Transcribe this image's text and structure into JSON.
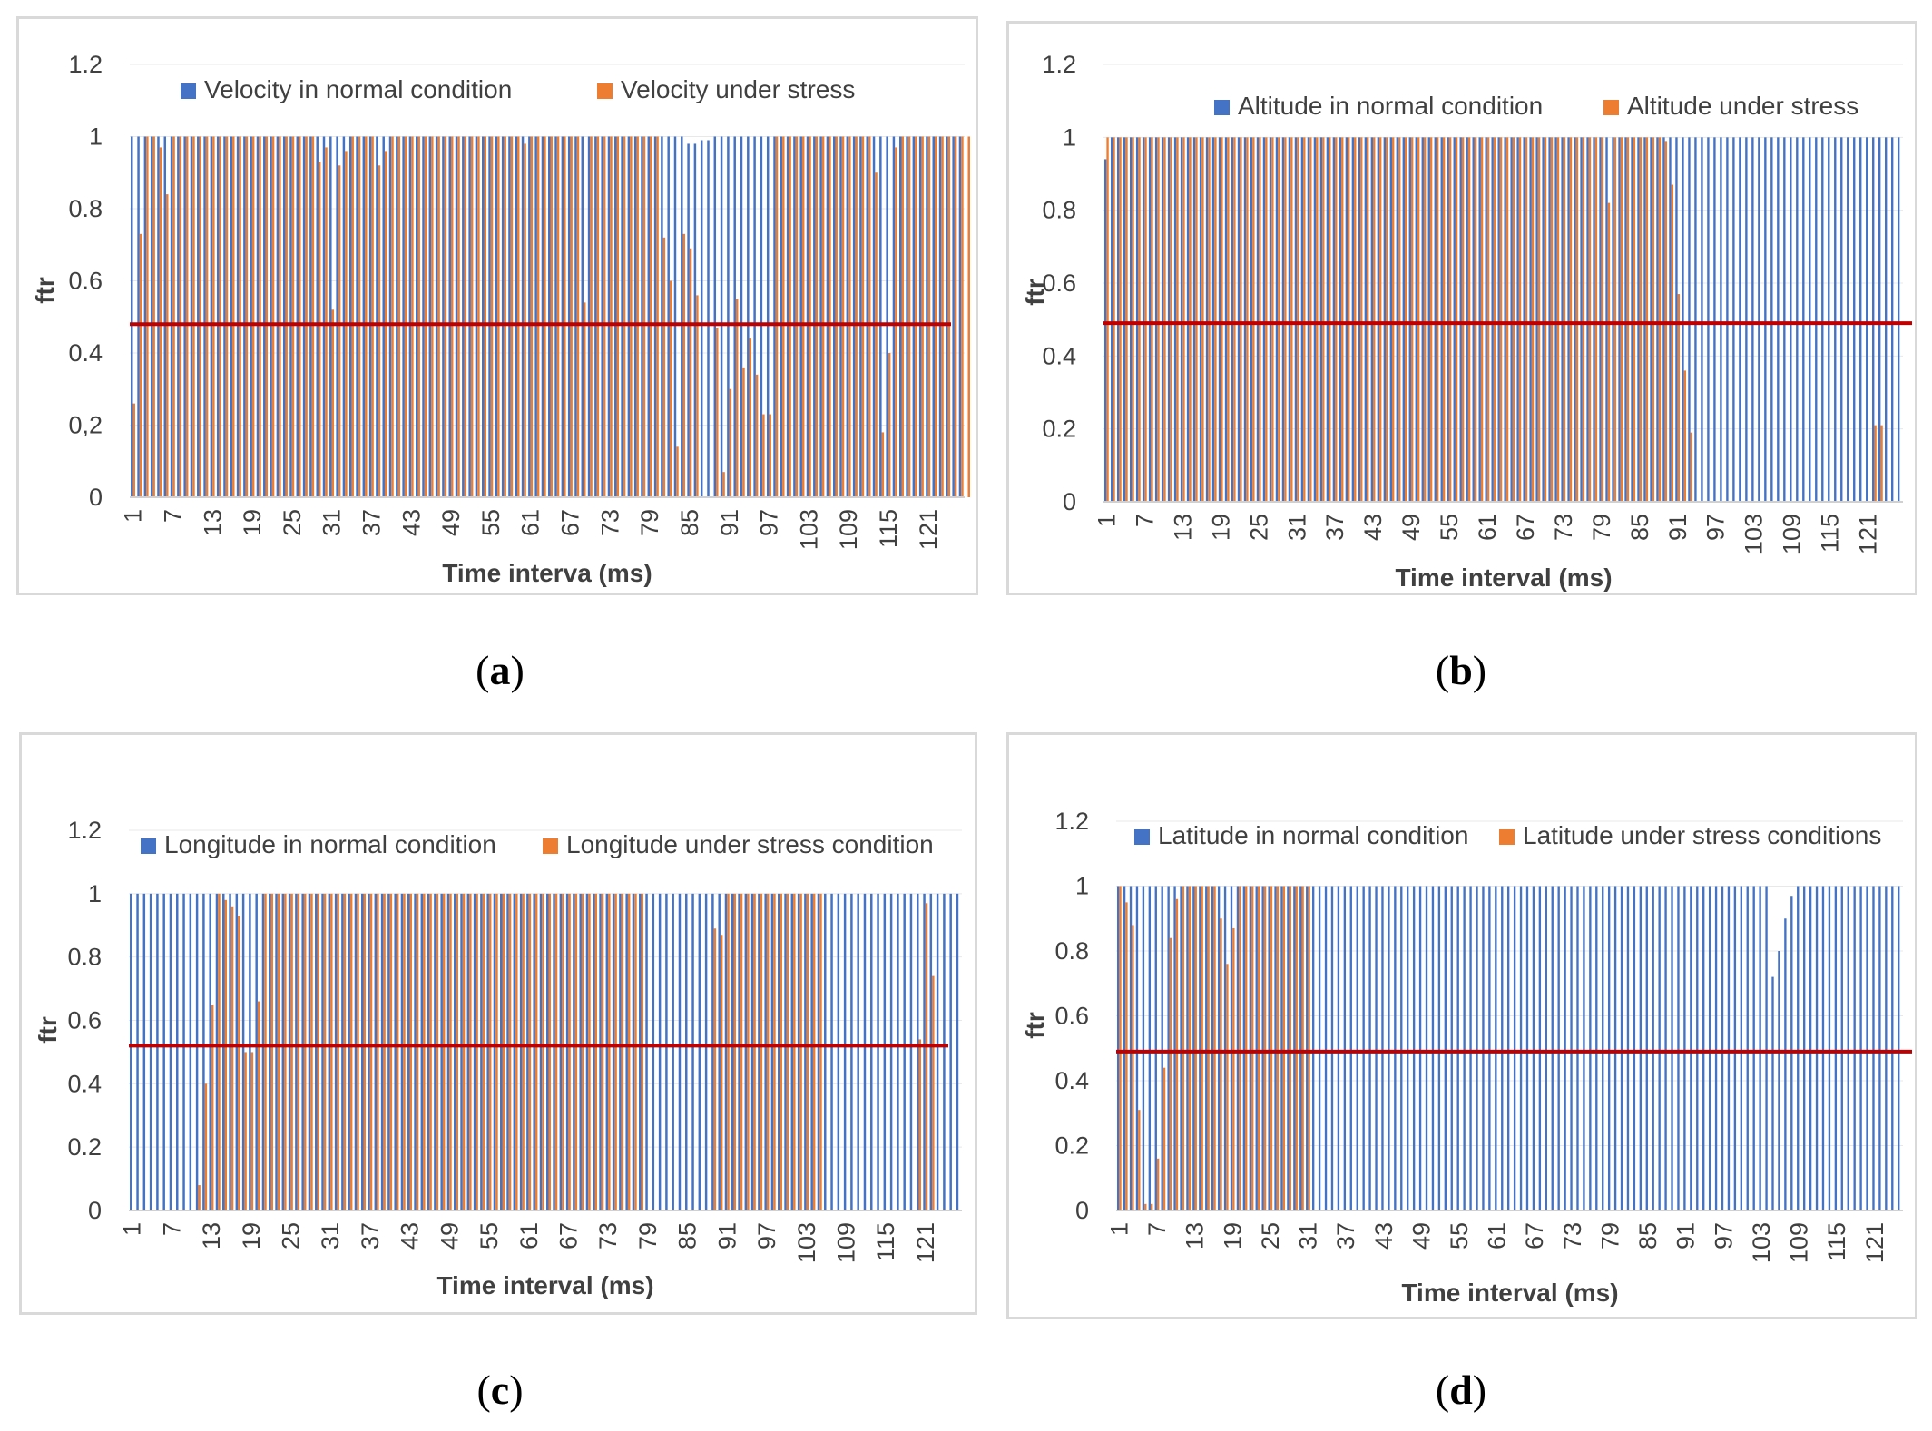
{
  "colors": {
    "normal": "#4472c4",
    "stress": "#ed7d31",
    "threshold": "#c00000"
  },
  "captions": [
    "a",
    "b",
    "c",
    "d"
  ],
  "chart_data": [
    {
      "type": "bar",
      "id": "a",
      "ylabel": "ftr",
      "xlabel": "Time interva (ms)",
      "y_tick_labels": [
        "0",
        "0,2",
        "0.4",
        "0.6",
        "0.8",
        "1",
        "1.2"
      ],
      "ylim": [
        0,
        1.2
      ],
      "x_tick_labels": [
        "1",
        "7",
        "13",
        "19",
        "25",
        "31",
        "37",
        "43",
        "49",
        "55",
        "61",
        "67",
        "73",
        "79",
        "85",
        "91",
        "97",
        "103",
        "109",
        "115",
        "121"
      ],
      "threshold": 0.48,
      "legend": [
        "Velocity in normal condition",
        "Velocity under stress"
      ],
      "series": [
        {
          "name": "Velocity in normal condition",
          "values": [
            1,
            1,
            1,
            1,
            1,
            1,
            1,
            1,
            1,
            1,
            1,
            1,
            1,
            1,
            1,
            1,
            1,
            1,
            1,
            1,
            1,
            1,
            1,
            1,
            1,
            1,
            1,
            1,
            1,
            1,
            1,
            1,
            1,
            1,
            1,
            1,
            1,
            1,
            1,
            1,
            1,
            1,
            1,
            1,
            1,
            1,
            1,
            1,
            1,
            1,
            1,
            1,
            1,
            1,
            1,
            1,
            1,
            1,
            1,
            1,
            1,
            1,
            1,
            1,
            1,
            1,
            1,
            1,
            1,
            1,
            1,
            1,
            1,
            1,
            1,
            1,
            1,
            1,
            1,
            1,
            1,
            1,
            1,
            1,
            0.98,
            0.98,
            0.99,
            0.99,
            1,
            1,
            1,
            1,
            1,
            1,
            1,
            1,
            1,
            1,
            1,
            1,
            1,
            1,
            1,
            1,
            1,
            1,
            1,
            1,
            1,
            1,
            1,
            1,
            1,
            1,
            1,
            1,
            1,
            1,
            1,
            1,
            1,
            1,
            1,
            1,
            1,
            1
          ]
        },
        {
          "name": "Velocity under stress",
          "values": [
            0.26,
            0.73,
            1,
            1,
            0.97,
            0.84,
            1,
            1,
            1,
            1,
            1,
            1,
            1,
            1,
            1,
            1,
            1,
            1,
            1,
            1,
            1,
            1,
            1,
            1,
            1,
            1,
            1,
            1,
            0.93,
            0.97,
            0.52,
            0.92,
            0.96,
            1,
            1,
            1,
            1,
            0.92,
            0.96,
            1,
            1,
            1,
            1,
            1,
            1,
            1,
            1,
            1,
            1,
            1,
            1,
            1,
            1,
            1,
            1,
            1,
            1,
            1,
            1,
            0.98,
            1,
            1,
            1,
            1,
            1,
            1,
            1,
            1,
            0.54,
            1,
            1,
            1,
            1,
            1,
            1,
            1,
            1,
            1,
            1,
            1,
            0.72,
            0.6,
            0.14,
            0.73,
            0.69,
            0.56,
            0,
            0,
            0.47,
            0.07,
            0.3,
            0.55,
            0.36,
            0.44,
            0.34,
            0.23,
            0.23,
            1,
            1,
            1,
            1,
            1,
            1,
            1,
            1,
            1,
            1,
            1,
            1,
            1,
            1,
            1,
            0.9,
            0.18,
            0.4,
            0.97,
            1,
            1,
            1,
            1,
            1,
            1,
            1,
            1,
            1,
            1,
            1
          ]
        }
      ]
    },
    {
      "type": "bar",
      "id": "b",
      "ylabel": "ftr",
      "xlabel": "Time interval (ms)",
      "y_tick_labels": [
        "0",
        "0.2",
        "0.4",
        "0.6",
        "0.8",
        "1",
        "1.2"
      ],
      "ylim": [
        0,
        1.2
      ],
      "x_tick_labels": [
        "1",
        "7",
        "13",
        "19",
        "25",
        "31",
        "37",
        "43",
        "49",
        "55",
        "61",
        "67",
        "73",
        "79",
        "85",
        "91",
        "97",
        "103",
        "109",
        "115",
        "121"
      ],
      "threshold": 0.49,
      "legend": [
        "Altitude in normal condition",
        "Altitude under stress"
      ],
      "series": [
        {
          "name": "Altitude in normal condition",
          "values": [
            0.94,
            1,
            1,
            1,
            1,
            1,
            1,
            1,
            1,
            1,
            1,
            1,
            1,
            1,
            1,
            1,
            1,
            1,
            1,
            1,
            1,
            1,
            1,
            1,
            1,
            1,
            1,
            1,
            1,
            1,
            1,
            1,
            1,
            1,
            1,
            1,
            1,
            1,
            1,
            1,
            1,
            1,
            1,
            1,
            1,
            1,
            1,
            1,
            1,
            1,
            1,
            1,
            1,
            1,
            1,
            1,
            1,
            1,
            1,
            1,
            1,
            1,
            1,
            1,
            1,
            1,
            1,
            1,
            1,
            1,
            1,
            1,
            1,
            1,
            1,
            1,
            1,
            1,
            1,
            1,
            1,
            1,
            1,
            1,
            1,
            1,
            1,
            1,
            1,
            1,
            1,
            1,
            1,
            1,
            1,
            1,
            1,
            1,
            1,
            1,
            1,
            1,
            1,
            1,
            1,
            1,
            1,
            1,
            1,
            1,
            1,
            1,
            1,
            1,
            1,
            1,
            1,
            1,
            1,
            1,
            1,
            1,
            1,
            1,
            1,
            1
          ]
        },
        {
          "name": "Altitude under stress",
          "values": [
            1,
            1,
            1,
            1,
            1,
            1,
            1,
            1,
            1,
            1,
            1,
            1,
            1,
            1,
            1,
            1,
            1,
            1,
            1,
            1,
            1,
            1,
            1,
            1,
            1,
            1,
            1,
            1,
            1,
            1,
            1,
            1,
            1,
            1,
            1,
            1,
            1,
            1,
            1,
            1,
            1,
            1,
            1,
            1,
            1,
            1,
            1,
            1,
            1,
            1,
            1,
            1,
            1,
            1,
            1,
            1,
            1,
            1,
            1,
            1,
            1,
            1,
            1,
            1,
            1,
            1,
            1,
            1,
            1,
            1,
            1,
            1,
            1,
            1,
            1,
            1,
            1,
            1,
            1,
            0.82,
            1,
            1,
            1,
            1,
            1,
            1,
            1,
            1,
            0.99,
            0.87,
            0.57,
            0.36,
            0.19,
            0,
            0,
            0,
            0,
            0,
            0,
            0,
            0,
            0,
            0,
            0,
            0,
            0,
            0,
            0,
            0,
            0,
            0,
            0,
            0,
            0,
            0,
            0,
            0,
            0,
            0,
            0,
            0,
            0.21,
            0.21,
            0,
            0,
            0
          ]
        }
      ]
    },
    {
      "type": "bar",
      "id": "c",
      "ylabel": "ftr",
      "xlabel": "Time interval (ms)",
      "y_tick_labels": [
        "0",
        "0.2",
        "0.4",
        "0.6",
        "0.8",
        "1",
        "1.2"
      ],
      "ylim": [
        0,
        1.2
      ],
      "x_tick_labels": [
        "1",
        "7",
        "13",
        "19",
        "25",
        "31",
        "37",
        "43",
        "49",
        "55",
        "61",
        "67",
        "73",
        "79",
        "85",
        "91",
        "97",
        "103",
        "109",
        "115",
        "121"
      ],
      "threshold": 0.52,
      "legend": [
        "Longitude in normal condition",
        "Longitude under stress condition"
      ],
      "series": [
        {
          "name": "Longitude in normal condition",
          "values": [
            1,
            1,
            1,
            1,
            1,
            1,
            1,
            1,
            1,
            1,
            1,
            1,
            1,
            1,
            1,
            1,
            1,
            1,
            1,
            1,
            1,
            1,
            1,
            1,
            1,
            1,
            1,
            1,
            1,
            1,
            1,
            1,
            1,
            1,
            1,
            1,
            1,
            1,
            1,
            1,
            1,
            1,
            1,
            1,
            1,
            1,
            1,
            1,
            1,
            1,
            1,
            1,
            1,
            1,
            1,
            1,
            1,
            1,
            1,
            1,
            1,
            1,
            1,
            1,
            1,
            1,
            1,
            1,
            1,
            1,
            1,
            1,
            1,
            1,
            1,
            1,
            1,
            1,
            1,
            1,
            1,
            1,
            1,
            1,
            1,
            1,
            1,
            1,
            1,
            1,
            1,
            1,
            1,
            1,
            1,
            1,
            1,
            1,
            1,
            1,
            1,
            1,
            1,
            1,
            1,
            1,
            1,
            1,
            1,
            1,
            1,
            1,
            1,
            1,
            1,
            1,
            1,
            1,
            1,
            1,
            1,
            1,
            1,
            1,
            1,
            1
          ]
        },
        {
          "name": "Longitude under stress condition",
          "values": [
            0,
            0,
            0,
            0,
            0,
            0,
            0,
            0,
            0,
            0,
            0.08,
            0.4,
            0.65,
            1,
            0.98,
            0.96,
            0.93,
            0.5,
            0.5,
            0.66,
            1,
            1,
            1,
            1,
            1,
            1,
            1,
            1,
            1,
            1,
            1,
            1,
            1,
            1,
            1,
            1,
            1,
            1,
            1,
            1,
            1,
            1,
            1,
            1,
            1,
            1,
            1,
            1,
            1,
            1,
            1,
            1,
            1,
            1,
            1,
            1,
            1,
            1,
            1,
            1,
            1,
            1,
            1,
            1,
            1,
            1,
            1,
            1,
            1,
            1,
            1,
            1,
            1,
            1,
            1,
            1,
            1,
            1,
            0,
            0,
            0,
            0,
            0,
            0,
            0,
            0,
            0,
            0,
            0.89,
            0.87,
            1,
            1,
            1,
            1,
            1,
            1,
            1,
            1,
            1,
            1,
            1,
            1,
            1,
            1,
            1,
            0,
            0,
            0,
            0,
            0,
            0,
            0,
            0,
            0,
            0,
            0,
            0,
            0,
            0,
            0.54,
            0.97,
            0.74
          ]
        }
      ]
    },
    {
      "type": "bar",
      "id": "d",
      "ylabel": "ftr",
      "xlabel": "Time interval (ms)",
      "y_tick_labels": [
        "0",
        "0.2",
        "0.4",
        "0.6",
        "0.8",
        "1",
        "1.2"
      ],
      "ylim": [
        0,
        1.2
      ],
      "x_tick_labels": [
        "1",
        "7",
        "13",
        "19",
        "25",
        "31",
        "37",
        "43",
        "49",
        "55",
        "61",
        "67",
        "73",
        "79",
        "85",
        "91",
        "97",
        "103",
        "109",
        "115",
        "121"
      ],
      "threshold": 0.49,
      "legend": [
        "Latitude in normal condition",
        "Latitude under stress conditions"
      ],
      "series": [
        {
          "name": "Latitude in normal condition",
          "values": [
            1,
            1,
            1,
            1,
            1,
            1,
            1,
            1,
            1,
            1,
            1,
            1,
            1,
            1,
            1,
            1,
            1,
            1,
            1,
            1,
            1,
            1,
            1,
            1,
            1,
            1,
            1,
            1,
            1,
            1,
            1,
            1,
            1,
            1,
            1,
            1,
            1,
            1,
            1,
            1,
            1,
            1,
            1,
            1,
            1,
            1,
            1,
            1,
            1,
            1,
            1,
            1,
            1,
            1,
            1,
            1,
            1,
            1,
            1,
            1,
            1,
            1,
            1,
            1,
            1,
            1,
            1,
            1,
            1,
            1,
            1,
            1,
            1,
            1,
            1,
            1,
            1,
            1,
            1,
            1,
            1,
            1,
            1,
            1,
            1,
            1,
            1,
            1,
            1,
            1,
            1,
            1,
            1,
            1,
            1,
            1,
            1,
            1,
            1,
            1,
            1,
            1,
            1,
            1,
            0.72,
            0.8,
            0.9,
            0.97,
            1,
            1,
            1,
            1,
            1,
            1,
            1,
            1,
            1,
            1,
            1,
            1,
            1,
            1,
            1,
            1,
            1
          ]
        },
        {
          "name": "Latitude under stress conditions",
          "values": [
            1,
            0.95,
            0.88,
            0.31,
            0.02,
            0.02,
            0.16,
            0.44,
            0.84,
            0.96,
            1,
            1,
            1,
            1,
            1,
            1,
            0.9,
            0.76,
            0.87,
            1,
            1,
            1,
            1,
            1,
            1,
            1,
            1,
            1,
            1,
            1,
            1,
            0,
            0,
            0,
            0,
            0,
            0,
            0,
            0,
            0,
            0,
            0,
            0,
            0,
            0,
            0,
            0,
            0,
            0,
            0,
            0,
            0,
            0,
            0,
            0,
            0,
            0,
            0,
            0,
            0,
            0,
            0,
            0,
            0,
            0,
            0,
            0,
            0,
            0,
            0,
            0,
            0,
            0,
            0,
            0,
            0,
            0,
            0,
            0,
            0,
            0,
            0,
            0,
            0,
            0,
            0,
            0,
            0,
            0,
            0,
            0,
            0,
            0,
            0,
            0,
            0,
            0,
            0,
            0,
            0,
            0,
            0,
            0,
            0,
            0,
            0,
            0,
            0,
            0,
            0,
            0,
            0,
            0,
            0,
            0,
            0,
            0,
            0,
            0,
            0,
            0,
            0,
            0,
            0,
            0,
            0
          ]
        }
      ]
    }
  ]
}
